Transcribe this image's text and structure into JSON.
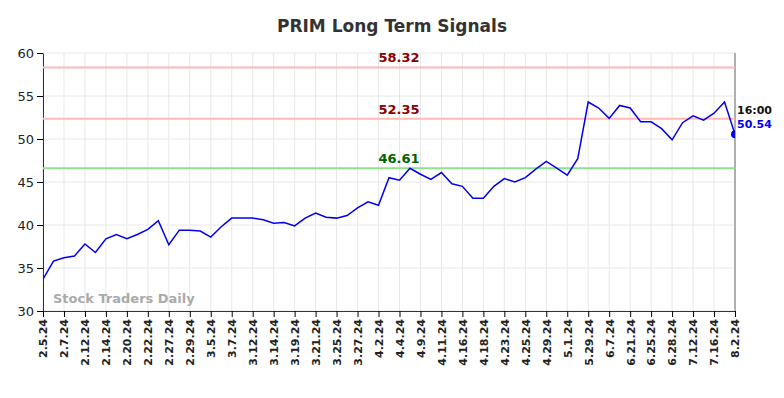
{
  "chart_data": {
    "type": "line",
    "title": "PRIM Long Term Signals",
    "categories": [
      "2.5.24",
      null,
      "2.7.24",
      null,
      "2.12.24",
      null,
      "2.14.24",
      null,
      "2.20.24",
      null,
      "2.22.24",
      null,
      "2.27.24",
      null,
      "2.29.24",
      null,
      "3.5.24",
      null,
      "3.7.24",
      null,
      "3.12.24",
      null,
      "3.14.24",
      null,
      "3.19.24",
      null,
      "3.21.24",
      null,
      "3.25.24",
      null,
      "3.27.24",
      null,
      "4.2.24",
      null,
      "4.4.24",
      null,
      "4.9.24",
      null,
      "4.11.24",
      null,
      "4.16.24",
      null,
      "4.18.24",
      null,
      "4.23.24",
      null,
      "4.25.24",
      null,
      "4.29.24",
      null,
      "5.1.24",
      null,
      "5.29.24",
      null,
      "6.7.24",
      null,
      "6.21.24",
      null,
      "6.25.24",
      null,
      "6.28.24",
      null,
      "7.12.24",
      null,
      "7.16.24",
      null,
      "8.2.24"
    ],
    "values": [
      33.7,
      35.8,
      36.2,
      36.4,
      37.8,
      36.8,
      38.4,
      38.9,
      38.4,
      38.9,
      39.5,
      40.5,
      37.7,
      39.4,
      39.4,
      39.3,
      38.6,
      39.8,
      40.8,
      40.8,
      40.8,
      40.6,
      40.2,
      40.3,
      39.9,
      40.8,
      41.4,
      40.9,
      40.8,
      41.1,
      42.0,
      42.7,
      42.3,
      45.5,
      45.2,
      46.6,
      45.9,
      45.3,
      46.1,
      44.8,
      44.5,
      43.1,
      43.1,
      44.5,
      45.4,
      45.0,
      45.5,
      46.5,
      47.4,
      46.6,
      45.8,
      47.7,
      54.3,
      53.6,
      52.4,
      53.9,
      53.6,
      52.0,
      52.0,
      51.2,
      49.9,
      51.9,
      52.7,
      52.2,
      53.0,
      54.3,
      50.54
    ],
    "color": "#0000ee",
    "ylim": [
      30,
      60
    ],
    "yticks": [
      30,
      35,
      40,
      45,
      50,
      55,
      60
    ],
    "grid": true,
    "reference_lines": [
      {
        "value": 58.32,
        "color": "#ffb8b8",
        "label_color": "#8b0000"
      },
      {
        "value": 52.35,
        "color": "#ffb8b8",
        "label_color": "#8b0000"
      },
      {
        "value": 46.61,
        "color": "#90e090",
        "label_color": "#006400"
      }
    ],
    "annotation": "16:00",
    "watermark": "Stock Traders Daily"
  }
}
